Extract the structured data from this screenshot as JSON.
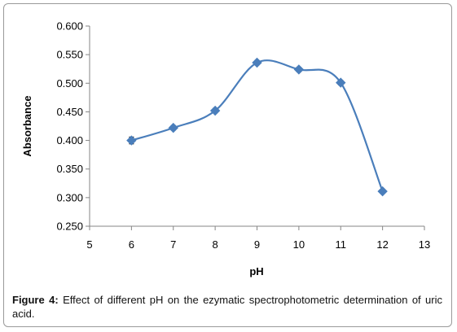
{
  "caption": {
    "label": "Figure 4:",
    "text": "Effect of different pH on the ezymatic spectrophotometric determination of uric acid."
  },
  "chart_data": {
    "type": "scatter",
    "title": "",
    "xlabel": "pH",
    "ylabel": "Absorbance",
    "xlim": [
      5,
      13
    ],
    "ylim": [
      0.25,
      0.6
    ],
    "x_ticks": [
      5,
      6,
      7,
      8,
      9,
      10,
      11,
      12,
      13
    ],
    "y_ticks": [
      "0.250",
      "0.300",
      "0.350",
      "0.400",
      "0.450",
      "0.500",
      "0.550",
      "0.600"
    ],
    "grid": false,
    "legend": "none",
    "line_style": "smoothed",
    "marker": "diamond",
    "error_bars": true,
    "series_color": "#4a7ebb",
    "series": [
      {
        "x": [
          6,
          7,
          8,
          9,
          10,
          11,
          12
        ],
        "y": [
          0.4,
          0.422,
          0.452,
          0.536,
          0.524,
          0.501,
          0.311
        ],
        "err": [
          0.006,
          0.004,
          0.004,
          0.004,
          0.004,
          0.004,
          0.0
        ]
      }
    ]
  }
}
